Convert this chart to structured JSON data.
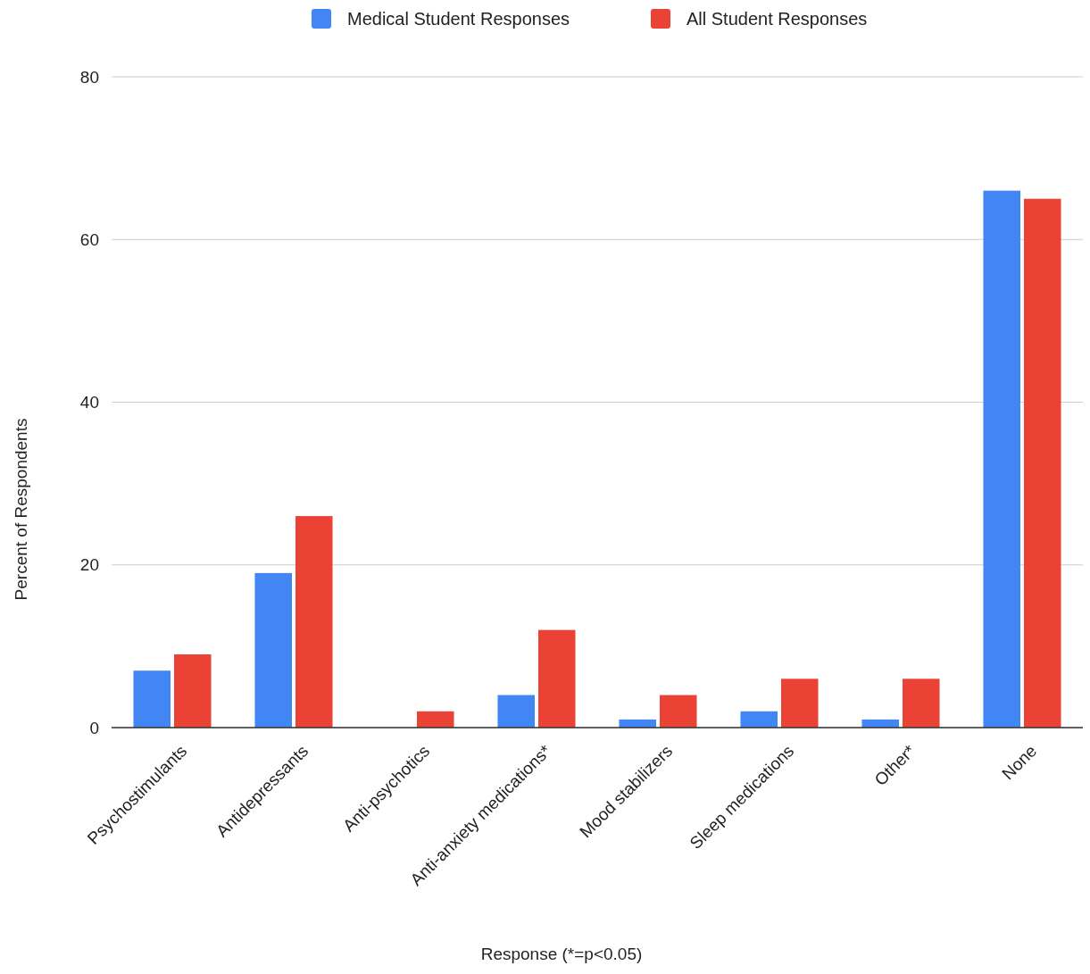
{
  "chart_data": {
    "type": "bar",
    "xlabel": "Response (*=p<0.05)",
    "ylabel": "Percent of Respondents",
    "categories": [
      "Psychostimulants",
      "Antidepressants",
      "Anti-psychotics",
      "Anti-anxiety medications*",
      "Mood stabilizers",
      "Sleep medications",
      "Other*",
      "None"
    ],
    "series": [
      {
        "name": "Medical Student Responses",
        "color": "#4285f4",
        "values": [
          7,
          19,
          0,
          4,
          1,
          2,
          1,
          66
        ]
      },
      {
        "name": "All Student Responses",
        "color": "#ea4335",
        "values": [
          9,
          26,
          2,
          12,
          4,
          6,
          6,
          65
        ]
      }
    ],
    "ylim": [
      0,
      80
    ],
    "yticks": [
      0,
      20,
      40,
      60,
      80
    ],
    "grid": "y",
    "legend": "top"
  }
}
